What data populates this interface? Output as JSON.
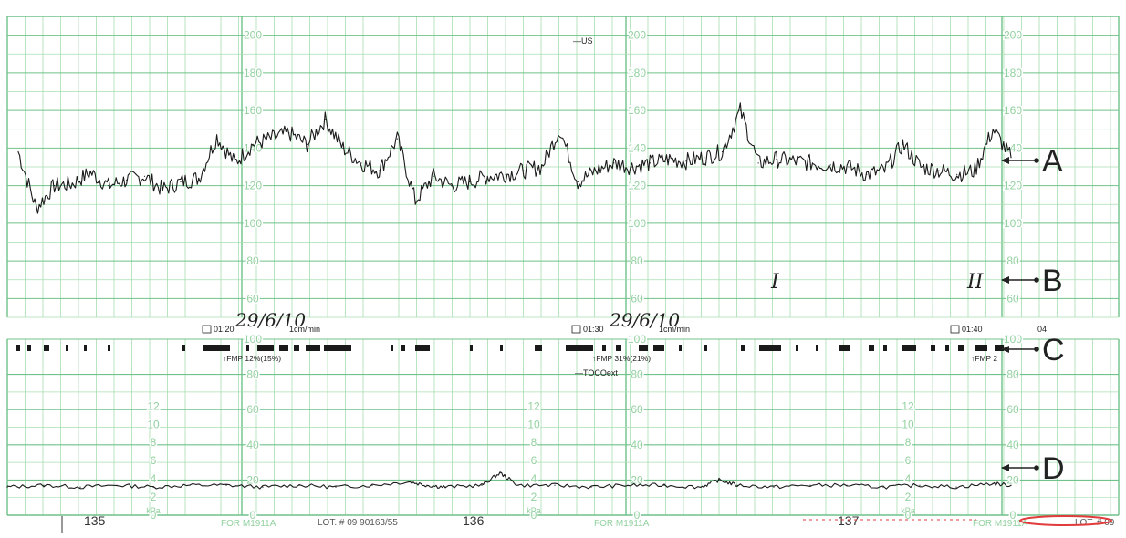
{
  "chart_data": [
    {
      "type": "line",
      "chart": "fetal-heart-rate",
      "ylim": [
        50,
        210
      ],
      "y_ticks": [
        60,
        80,
        100,
        120,
        140,
        160,
        180,
        200
      ],
      "y_tick_labels": [
        "60",
        "80",
        "100",
        "120",
        "140",
        "160",
        "180",
        "200"
      ],
      "grid": true,
      "legend": "—US",
      "x": [
        0,
        20,
        40,
        60,
        80,
        100,
        120,
        140,
        160,
        180,
        200,
        220,
        240,
        260,
        280,
        300,
        320,
        340,
        360,
        380,
        400,
        420,
        440,
        460,
        480,
        500,
        520,
        540,
        560,
        580,
        600,
        620,
        640,
        660,
        680,
        700,
        720,
        740,
        760,
        780,
        800,
        820,
        840,
        860,
        880,
        900,
        920,
        940,
        960,
        980,
        1000,
        1020,
        1040,
        1060,
        1080,
        1100
      ],
      "values": [
        138,
        108,
        120,
        121,
        127,
        120,
        123,
        125,
        118,
        122,
        124,
        146,
        132,
        142,
        145,
        148,
        142,
        155,
        140,
        132,
        128,
        145,
        112,
        125,
        120,
        122,
        125,
        126,
        128,
        130,
        150,
        122,
        128,
        132,
        130,
        132,
        134,
        133,
        135,
        138,
        160,
        132,
        134,
        133,
        132,
        131,
        130,
        126,
        128,
        142,
        130,
        128,
        126,
        128,
        150,
        135
      ],
      "annotations": [
        "A",
        "B"
      ],
      "marks_text": [
        "29/6/10",
        "29/6/10",
        "I",
        "II"
      ]
    },
    {
      "type": "line",
      "chart": "uterine-activity",
      "ylim": [
        0,
        100
      ],
      "y_ticks": [
        0,
        20,
        40,
        60,
        80,
        100
      ],
      "y_tick_labels": [
        "0",
        "20",
        "40",
        "60",
        "80",
        "100"
      ],
      "kpa_ticks": [
        "0",
        "2",
        "4",
        "6",
        "8",
        "10",
        "12"
      ],
      "kpa_unit": "kPa",
      "grid": true,
      "legend": "—TOCOext",
      "x": [
        0,
        40,
        80,
        120,
        160,
        200,
        240,
        280,
        320,
        360,
        400,
        440,
        460,
        480,
        520,
        540,
        560,
        600,
        640,
        680,
        720,
        760,
        780,
        800,
        840,
        880,
        920,
        960,
        1000,
        1040,
        1080,
        1100
      ],
      "values": [
        16,
        17,
        16,
        17,
        16,
        17,
        17,
        16,
        17,
        16,
        17,
        19,
        17,
        16,
        17,
        24,
        17,
        17,
        16,
        17,
        17,
        16,
        20,
        17,
        16,
        17,
        17,
        16,
        17,
        16,
        18,
        17
      ],
      "annotations": [
        "C",
        "D"
      ]
    }
  ],
  "header_blocks": [
    {
      "time": "01:20",
      "speed": "1cm/min",
      "fmp": "↑FMP 12%(15%)"
    },
    {
      "time": "01:30",
      "speed": "1cm/min",
      "fmp": "↑FMP 31%(21%)"
    },
    {
      "time": "01:40",
      "speed": "04",
      "fmp": "↑FMP 2"
    }
  ],
  "footer": {
    "page_numbers": [
      "135",
      "136",
      "137"
    ],
    "model_labels": [
      "FOR M1911A",
      "FOR M1911A",
      "FOR M1911A"
    ],
    "lot_labels": [
      "LOT. # 09 90163/55",
      "LOT. # 09"
    ]
  },
  "colors": {
    "grid": "#a8deb0",
    "grid_major": "#6fc28a",
    "trace": "#1a1a1a",
    "label_green": "#93d1a0",
    "ink": "#222222",
    "red_mark": "#e23b3b"
  }
}
